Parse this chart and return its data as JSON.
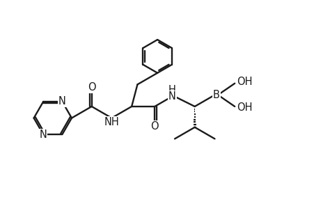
{
  "bg_color": "#ffffff",
  "line_color": "#1a1a1a",
  "line_width": 1.7,
  "font_size": 10.5,
  "fig_width": 4.74,
  "fig_height": 3.16,
  "dpi": 100,
  "xlim": [
    -0.3,
    9.8
  ],
  "ylim": [
    1.0,
    7.8
  ]
}
